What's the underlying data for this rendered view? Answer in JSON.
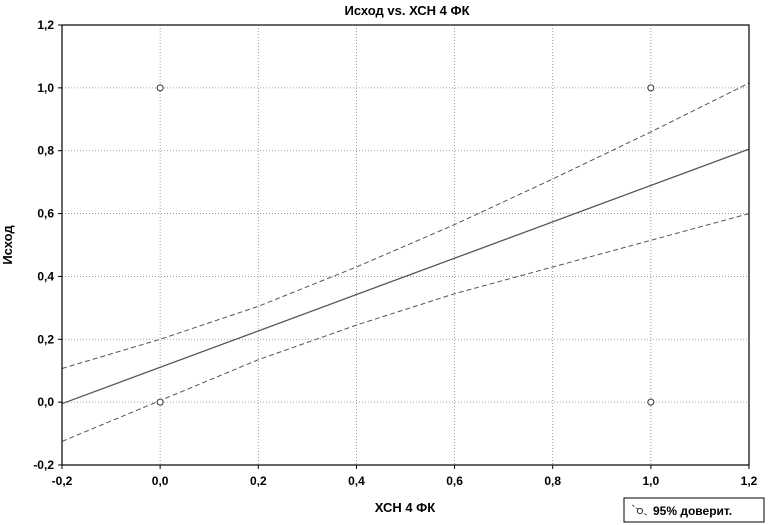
{
  "chart_data": {
    "type": "scatter",
    "title": "Исход vs. ХСН 4 ФК",
    "xlabel": "ХСН 4 ФК",
    "ylabel": "Исход",
    "xlim": [
      -0.2,
      1.2
    ],
    "ylim": [
      -0.2,
      1.2
    ],
    "x_ticks": [
      -0.2,
      0.0,
      0.2,
      0.4,
      0.6,
      0.8,
      1.0,
      1.2
    ],
    "y_ticks": [
      -0.2,
      0.0,
      0.2,
      0.4,
      0.6,
      0.8,
      1.0,
      1.2
    ],
    "x_tick_labels": [
      "-0,2",
      "0,0",
      "0,2",
      "0,4",
      "0,6",
      "0,8",
      "1,0",
      "1,2"
    ],
    "y_tick_labels": [
      "-0,2",
      "0,0",
      "0,2",
      "0,4",
      "0,6",
      "0,8",
      "1,0",
      "1,2"
    ],
    "grid": true,
    "points": [
      {
        "x": 0.0,
        "y": 1.0
      },
      {
        "x": 0.0,
        "y": 0.0
      },
      {
        "x": 1.0,
        "y": 1.0
      },
      {
        "x": 1.0,
        "y": 0.0
      }
    ],
    "fit_line": {
      "points": [
        [
          -0.2,
          -0.005
        ],
        [
          1.2,
          0.805
        ]
      ]
    },
    "ci_upper": {
      "points": [
        [
          -0.2,
          0.107
        ],
        [
          0.0,
          0.2
        ],
        [
          0.2,
          0.305
        ],
        [
          0.4,
          0.43
        ],
        [
          0.6,
          0.565
        ],
        [
          0.8,
          0.71
        ],
        [
          1.0,
          0.86
        ],
        [
          1.2,
          1.015
        ]
      ]
    },
    "ci_lower": {
      "points": [
        [
          -0.2,
          -0.125
        ],
        [
          0.0,
          0.005
        ],
        [
          0.2,
          0.135
        ],
        [
          0.4,
          0.245
        ],
        [
          0.6,
          0.345
        ],
        [
          0.8,
          0.43
        ],
        [
          1.0,
          0.515
        ],
        [
          1.2,
          0.6
        ]
      ]
    },
    "legend": {
      "label": "95% доверит.",
      "position": "bottom-right"
    },
    "colors": {
      "line": "#555555",
      "grid": "#888888",
      "marker": "#333333"
    }
  }
}
